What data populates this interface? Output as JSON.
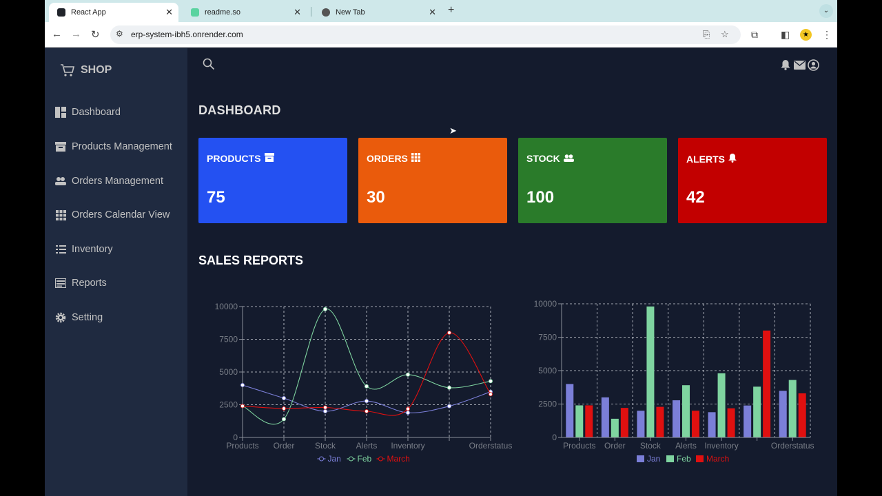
{
  "browser": {
    "tabs": [
      {
        "title": "React App",
        "active": true
      },
      {
        "title": "readme.so",
        "active": false
      },
      {
        "title": "New Tab",
        "active": false
      }
    ],
    "url": "erp-system-ibh5.onrender.com"
  },
  "sidebar": {
    "brand": "SHOP",
    "items": [
      {
        "label": "Dashboard",
        "icon": "dashboard-icon"
      },
      {
        "label": "Products Management",
        "icon": "archive-icon"
      },
      {
        "label": "Orders Management",
        "icon": "people-icon"
      },
      {
        "label": "Orders Calendar View",
        "icon": "grid-icon"
      },
      {
        "label": "Inventory",
        "icon": "list-icon"
      },
      {
        "label": "Reports",
        "icon": "reports-icon"
      },
      {
        "label": "Setting",
        "icon": "gear-icon"
      }
    ]
  },
  "main": {
    "title": "DASHBOARD",
    "cards": [
      {
        "label": "PRODUCTS",
        "value": "75",
        "color": "#2451f2",
        "icon": "archive-icon"
      },
      {
        "label": "ORDERS",
        "value": "30",
        "color": "#ea5b0c",
        "icon": "grid-icon"
      },
      {
        "label": "STOCK",
        "value": "100",
        "color": "#2a7b2a",
        "icon": "people-icon"
      },
      {
        "label": "ALERTS",
        "value": "42",
        "color": "#c20000",
        "icon": "bell-icon"
      }
    ],
    "section_title": "SALES REPORTS"
  },
  "chart_data": [
    {
      "type": "line",
      "categories": [
        "Products",
        "Order",
        "Stock",
        "Alerts",
        "Inventory",
        "",
        "Orderstatus"
      ],
      "ylim": [
        0,
        10000
      ],
      "yticks": [
        "0",
        "2500",
        "5000",
        "7500",
        "10000"
      ],
      "grid": true,
      "legend": "bottom",
      "series": [
        {
          "name": "Jan",
          "color": "#7b7fd8",
          "values": [
            4000,
            3000,
            2000,
            2780,
            1890,
            2390,
            3490
          ]
        },
        {
          "name": "Feb",
          "color": "#7fd4a0",
          "values": [
            2400,
            1398,
            9800,
            3908,
            4800,
            3800,
            4300
          ]
        },
        {
          "name": "March",
          "color": "#e01010",
          "values": [
            2400,
            2210,
            2290,
            2000,
            2181,
            8000,
            3300
          ]
        }
      ]
    },
    {
      "type": "bar",
      "categories": [
        "Products",
        "Order",
        "Stock",
        "Alerts",
        "Inventory",
        "",
        "Orderstatus"
      ],
      "ylim": [
        0,
        10000
      ],
      "yticks": [
        "0",
        "2500",
        "5000",
        "7500",
        "10000"
      ],
      "grid": true,
      "legend": "bottom",
      "series": [
        {
          "name": "Jan",
          "color": "#7b7fd8",
          "values": [
            4000,
            3000,
            2000,
            2780,
            1890,
            2390,
            3490
          ]
        },
        {
          "name": "Feb",
          "color": "#7fd4a0",
          "values": [
            2400,
            1398,
            9800,
            3908,
            4800,
            3800,
            4300
          ]
        },
        {
          "name": "March",
          "color": "#e01010",
          "values": [
            2400,
            2210,
            2290,
            2000,
            2181,
            8000,
            3300
          ]
        }
      ]
    }
  ]
}
